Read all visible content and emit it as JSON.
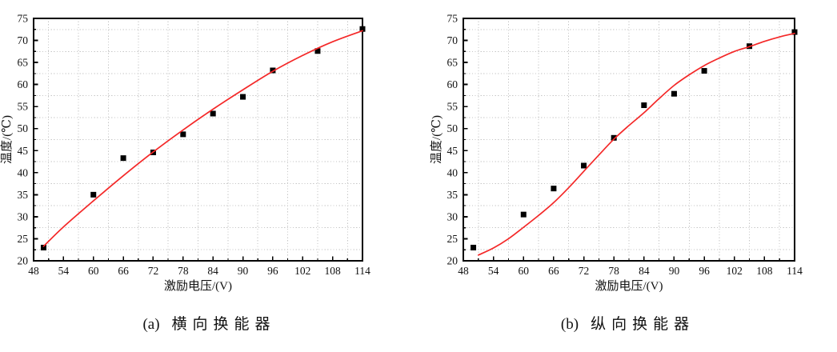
{
  "page": {
    "background": "#ffffff"
  },
  "colors": {
    "fit_line": "#f42828",
    "marker": "#000000",
    "grid": "#c6c6c6",
    "axis": "#000000"
  },
  "chart_data": [
    {
      "type": "scatter",
      "caption_prefix": "(a)",
      "caption_title": "横向换能器",
      "xlabel": "激励电压/(V)",
      "ylabel": "温度/(℃)",
      "xlim": [
        48,
        114
      ],
      "ylim": [
        20,
        75
      ],
      "x_major_ticks": [
        48,
        54,
        60,
        66,
        72,
        78,
        84,
        90,
        96,
        102,
        108,
        114
      ],
      "x_minor_ticks": [
        51,
        57,
        63,
        69,
        75,
        81,
        87,
        93,
        99,
        105,
        111
      ],
      "y_major_ticks": [
        20,
        25,
        30,
        35,
        40,
        45,
        50,
        55,
        60,
        65,
        70,
        75
      ],
      "y_minor_ticks": [
        22.5,
        27.5,
        32.5,
        37.5,
        42.5,
        47.5,
        52.5,
        57.5,
        62.5,
        67.5,
        72.5
      ],
      "grid": "dotted lines at minor ticks only",
      "legend": "none",
      "series": [
        {
          "name": "data-points",
          "type": "scatter",
          "marker": "filled-square",
          "points": [
            [
              50,
              23
            ],
            [
              60,
              35
            ],
            [
              66,
              43.3
            ],
            [
              72,
              44.6
            ],
            [
              78,
              48.7
            ],
            [
              84,
              53.4
            ],
            [
              90,
              57.2
            ],
            [
              96,
              63.2
            ],
            [
              105,
              67.6
            ],
            [
              114,
              72.6
            ]
          ]
        },
        {
          "name": "fit-curve",
          "type": "line",
          "points": [
            [
              50,
              23.3
            ],
            [
              54,
              27.7
            ],
            [
              60,
              33.6
            ],
            [
              66,
              39.3
            ],
            [
              72,
              44.7
            ],
            [
              78,
              49.7
            ],
            [
              84,
              54.4
            ],
            [
              90,
              58.8
            ],
            [
              96,
              63.0
            ],
            [
              102,
              66.6
            ],
            [
              108,
              69.7
            ],
            [
              114,
              72.2
            ]
          ]
        }
      ]
    },
    {
      "type": "scatter",
      "caption_prefix": "(b)",
      "caption_title": "纵向换能器",
      "xlabel": "激励电压/(V)",
      "ylabel": "温度/(℃)",
      "xlim": [
        48,
        114
      ],
      "ylim": [
        20,
        75
      ],
      "x_major_ticks": [
        48,
        54,
        60,
        66,
        72,
        78,
        84,
        90,
        96,
        102,
        108,
        114
      ],
      "x_minor_ticks": [
        51,
        57,
        63,
        69,
        75,
        81,
        87,
        93,
        99,
        105,
        111
      ],
      "y_major_ticks": [
        20,
        25,
        30,
        35,
        40,
        45,
        50,
        55,
        60,
        65,
        70,
        75
      ],
      "y_minor_ticks": [
        22.5,
        27.5,
        32.5,
        37.5,
        42.5,
        47.5,
        52.5,
        57.5,
        62.5,
        67.5,
        72.5
      ],
      "grid": "dotted lines at minor ticks only",
      "legend": "none",
      "series": [
        {
          "name": "data-points",
          "type": "scatter",
          "marker": "filled-square",
          "points": [
            [
              50,
              23
            ],
            [
              60,
              30.5
            ],
            [
              66,
              36.4
            ],
            [
              72,
              41.6
            ],
            [
              78,
              47.9
            ],
            [
              84,
              55.3
            ],
            [
              90,
              57.9
            ],
            [
              96,
              63.1
            ],
            [
              105,
              68.7
            ],
            [
              114,
              71.9
            ]
          ]
        },
        {
          "name": "fit-curve",
          "type": "line",
          "points": [
            [
              51,
              21.3
            ],
            [
              54,
              22.9
            ],
            [
              57,
              25.0
            ],
            [
              60,
              27.6
            ],
            [
              63,
              30.3
            ],
            [
              66,
              33.2
            ],
            [
              69,
              36.6
            ],
            [
              72,
              40.3
            ],
            [
              75,
              44.0
            ],
            [
              78,
              47.6
            ],
            [
              81,
              50.7
            ],
            [
              84,
              53.6
            ],
            [
              87,
              56.8
            ],
            [
              90,
              59.8
            ],
            [
              93,
              62.2
            ],
            [
              96,
              64.3
            ],
            [
              99,
              66.0
            ],
            [
              102,
              67.5
            ],
            [
              105,
              68.6
            ],
            [
              108,
              69.8
            ],
            [
              111,
              70.8
            ],
            [
              114,
              71.6
            ]
          ]
        }
      ]
    }
  ]
}
